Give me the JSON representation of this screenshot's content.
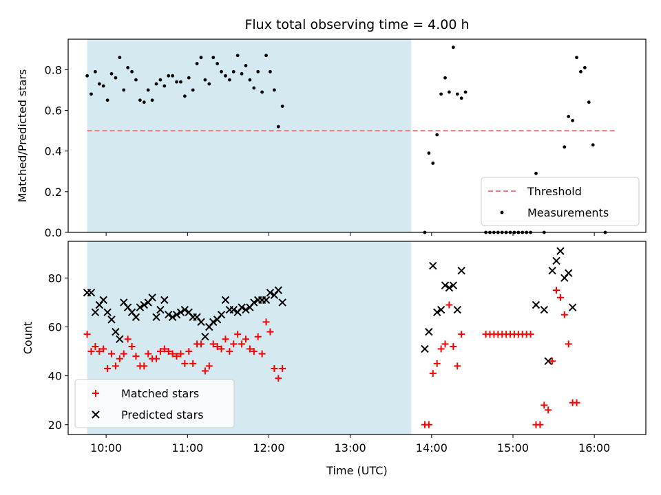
{
  "chart_data": [
    {
      "type": "scatter",
      "title": "Flux total observing time = 4.00 h",
      "xlabel": "",
      "ylabel": "Matched/Predicted stars",
      "ylim": [
        0,
        0.95
      ],
      "yticks": [
        0.0,
        0.2,
        0.4,
        0.6,
        0.8
      ],
      "ytick_labels": [
        "0.0",
        "0.2",
        "0.4",
        "0.6",
        "0.8"
      ],
      "xlim": [
        "09:32",
        "16:38"
      ],
      "x_tick_values": [
        "10:00",
        "11:00",
        "12:00",
        "13:00",
        "14:00",
        "15:00",
        "16:00"
      ],
      "shaded_region": {
        "start": "09:46",
        "end": "13:45",
        "color": "#d4eaf0"
      },
      "grid": false,
      "legend_position": "lower right",
      "threshold": {
        "name": "Threshold",
        "value": 0.5,
        "x_start": "09:46",
        "x_end": "16:15",
        "color": "#f07b7b",
        "style": "dashed"
      },
      "series": [
        {
          "name": "Measurements",
          "color": "#000000",
          "marker": "dot",
          "points": [
            [
              "09:46",
              0.77
            ],
            [
              "09:49",
              0.68
            ],
            [
              "09:52",
              0.79
            ],
            [
              "09:55",
              0.73
            ],
            [
              "09:58",
              0.72
            ],
            [
              "10:01",
              0.65
            ],
            [
              "10:04",
              0.78
            ],
            [
              "10:07",
              0.76
            ],
            [
              "10:10",
              0.86
            ],
            [
              "10:13",
              0.7
            ],
            [
              "10:16",
              0.81
            ],
            [
              "10:19",
              0.79
            ],
            [
              "10:22",
              0.75
            ],
            [
              "10:25",
              0.65
            ],
            [
              "10:28",
              0.64
            ],
            [
              "10:31",
              0.7
            ],
            [
              "10:34",
              0.65
            ],
            [
              "10:37",
              0.73
            ],
            [
              "10:40",
              0.75
            ],
            [
              "10:43",
              0.72
            ],
            [
              "10:46",
              0.77
            ],
            [
              "10:49",
              0.77
            ],
            [
              "10:52",
              0.74
            ],
            [
              "10:55",
              0.74
            ],
            [
              "10:58",
              0.67
            ],
            [
              "11:01",
              0.76
            ],
            [
              "11:04",
              0.7
            ],
            [
              "11:07",
              0.83
            ],
            [
              "11:10",
              0.86
            ],
            [
              "11:13",
              0.75
            ],
            [
              "11:16",
              0.73
            ],
            [
              "11:19",
              0.86
            ],
            [
              "11:22",
              0.83
            ],
            [
              "11:25",
              0.79
            ],
            [
              "11:28",
              0.77
            ],
            [
              "11:31",
              0.75
            ],
            [
              "11:34",
              0.79
            ],
            [
              "11:37",
              0.87
            ],
            [
              "11:40",
              0.78
            ],
            [
              "11:43",
              0.82
            ],
            [
              "11:46",
              0.75
            ],
            [
              "11:49",
              0.71
            ],
            [
              "11:52",
              0.79
            ],
            [
              "11:55",
              0.69
            ],
            [
              "11:58",
              0.87
            ],
            [
              "12:01",
              0.79
            ],
            [
              "12:04",
              0.7
            ],
            [
              "12:07",
              0.52
            ],
            [
              "12:10",
              0.62
            ],
            [
              "13:55",
              0.0
            ],
            [
              "13:58",
              0.39
            ],
            [
              "14:01",
              0.34
            ],
            [
              "14:04",
              0.48
            ],
            [
              "14:07",
              0.68
            ],
            [
              "14:10",
              0.76
            ],
            [
              "14:13",
              0.69
            ],
            [
              "14:16",
              0.91
            ],
            [
              "14:19",
              0.68
            ],
            [
              "14:22",
              0.66
            ],
            [
              "14:25",
              0.69
            ],
            [
              "14:40",
              0.0
            ],
            [
              "14:43",
              0.0
            ],
            [
              "14:46",
              0.0
            ],
            [
              "14:49",
              0.0
            ],
            [
              "14:52",
              0.0
            ],
            [
              "14:55",
              0.0
            ],
            [
              "14:58",
              0.0
            ],
            [
              "15:01",
              0.0
            ],
            [
              "15:04",
              0.0
            ],
            [
              "15:07",
              0.0
            ],
            [
              "15:10",
              0.0
            ],
            [
              "15:13",
              0.0
            ],
            [
              "15:17",
              0.29
            ],
            [
              "15:23",
              0.0
            ],
            [
              "15:38",
              0.42
            ],
            [
              "15:41",
              0.57
            ],
            [
              "15:44",
              0.55
            ],
            [
              "15:47",
              0.86
            ],
            [
              "15:50",
              0.79
            ],
            [
              "15:53",
              0.81
            ],
            [
              "15:56",
              0.64
            ],
            [
              "15:59",
              0.43
            ],
            [
              "16:08",
              0.0
            ]
          ]
        }
      ]
    },
    {
      "type": "scatter",
      "title": "",
      "xlabel": "Time (UTC)",
      "ylabel": "Count",
      "ylim": [
        16,
        95
      ],
      "yticks": [
        20,
        40,
        60,
        80
      ],
      "ytick_labels": [
        "20",
        "40",
        "60",
        "80"
      ],
      "xlim": [
        "09:32",
        "16:38"
      ],
      "x_tick_values": [
        "10:00",
        "11:00",
        "12:00",
        "13:00",
        "14:00",
        "15:00",
        "16:00"
      ],
      "x_tick_labels": [
        "10:00",
        "11:00",
        "12:00",
        "13:00",
        "14:00",
        "15:00",
        "16:00"
      ],
      "shaded_region": {
        "start": "09:46",
        "end": "13:45",
        "color": "#d4eaf0"
      },
      "grid": false,
      "legend_position": "lower left",
      "series": [
        {
          "name": "Matched stars",
          "color": "#ff0000",
          "marker": "plus",
          "points": [
            [
              "09:46",
              57
            ],
            [
              "09:49",
              50
            ],
            [
              "09:52",
              52
            ],
            [
              "09:55",
              50
            ],
            [
              "09:58",
              51
            ],
            [
              "10:01",
              43
            ],
            [
              "10:04",
              49
            ],
            [
              "10:07",
              44
            ],
            [
              "10:10",
              47
            ],
            [
              "10:13",
              49
            ],
            [
              "10:16",
              55
            ],
            [
              "10:19",
              52
            ],
            [
              "10:22",
              48
            ],
            [
              "10:25",
              44
            ],
            [
              "10:28",
              44
            ],
            [
              "10:31",
              49
            ],
            [
              "10:34",
              47
            ],
            [
              "10:37",
              47
            ],
            [
              "10:40",
              50
            ],
            [
              "10:43",
              51
            ],
            [
              "10:46",
              50
            ],
            [
              "10:49",
              49
            ],
            [
              "10:52",
              48
            ],
            [
              "10:55",
              49
            ],
            [
              "10:58",
              45
            ],
            [
              "11:01",
              50
            ],
            [
              "11:04",
              45
            ],
            [
              "11:07",
              53
            ],
            [
              "11:10",
              53
            ],
            [
              "11:13",
              42
            ],
            [
              "11:16",
              44
            ],
            [
              "11:19",
              53
            ],
            [
              "11:22",
              52
            ],
            [
              "11:25",
              51
            ],
            [
              "11:28",
              55
            ],
            [
              "11:31",
              50
            ],
            [
              "11:34",
              53
            ],
            [
              "11:37",
              57
            ],
            [
              "11:40",
              53
            ],
            [
              "11:43",
              55
            ],
            [
              "11:46",
              51
            ],
            [
              "11:49",
              50
            ],
            [
              "11:52",
              56
            ],
            [
              "11:55",
              49
            ],
            [
              "11:58",
              62
            ],
            [
              "12:01",
              58
            ],
            [
              "12:04",
              43
            ],
            [
              "12:07",
              39
            ],
            [
              "12:10",
              43
            ],
            [
              "13:55",
              20
            ],
            [
              "13:58",
              20
            ],
            [
              "14:01",
              41
            ],
            [
              "14:04",
              45
            ],
            [
              "14:07",
              51
            ],
            [
              "14:10",
              53
            ],
            [
              "14:13",
              69
            ],
            [
              "14:16",
              52
            ],
            [
              "14:19",
              44
            ],
            [
              "14:22",
              57
            ],
            [
              "14:40",
              57
            ],
            [
              "14:43",
              57
            ],
            [
              "14:46",
              57
            ],
            [
              "14:49",
              57
            ],
            [
              "14:52",
              57
            ],
            [
              "14:55",
              57
            ],
            [
              "14:58",
              57
            ],
            [
              "15:01",
              57
            ],
            [
              "15:04",
              57
            ],
            [
              "15:07",
              57
            ],
            [
              "15:10",
              57
            ],
            [
              "15:13",
              57
            ],
            [
              "15:17",
              20
            ],
            [
              "15:20",
              20
            ],
            [
              "15:23",
              28
            ],
            [
              "15:26",
              26
            ],
            [
              "15:29",
              46
            ],
            [
              "15:32",
              75
            ],
            [
              "15:35",
              72
            ],
            [
              "15:38",
              65
            ],
            [
              "15:41",
              53
            ],
            [
              "15:44",
              29
            ],
            [
              "15:47",
              29
            ]
          ]
        },
        {
          "name": "Predicted stars",
          "color": "#000000",
          "marker": "x",
          "points": [
            [
              "09:46",
              74
            ],
            [
              "09:49",
              74
            ],
            [
              "09:52",
              66
            ],
            [
              "09:55",
              69
            ],
            [
              "09:58",
              71
            ],
            [
              "10:01",
              66
            ],
            [
              "10:04",
              63
            ],
            [
              "10:07",
              58
            ],
            [
              "10:10",
              55
            ],
            [
              "10:13",
              70
            ],
            [
              "10:16",
              68
            ],
            [
              "10:19",
              66
            ],
            [
              "10:22",
              64
            ],
            [
              "10:25",
              68
            ],
            [
              "10:28",
              69
            ],
            [
              "10:31",
              70
            ],
            [
              "10:34",
              72
            ],
            [
              "10:37",
              64
            ],
            [
              "10:40",
              67
            ],
            [
              "10:43",
              71
            ],
            [
              "10:46",
              65
            ],
            [
              "10:49",
              64
            ],
            [
              "10:52",
              65
            ],
            [
              "10:55",
              66
            ],
            [
              "10:58",
              67
            ],
            [
              "11:01",
              66
            ],
            [
              "11:04",
              64
            ],
            [
              "11:07",
              64
            ],
            [
              "11:10",
              62
            ],
            [
              "11:13",
              56
            ],
            [
              "11:16",
              60
            ],
            [
              "11:19",
              62
            ],
            [
              "11:22",
              63
            ],
            [
              "11:25",
              65
            ],
            [
              "11:28",
              71
            ],
            [
              "11:31",
              67
            ],
            [
              "11:34",
              67
            ],
            [
              "11:37",
              66
            ],
            [
              "11:40",
              68
            ],
            [
              "11:43",
              67
            ],
            [
              "11:46",
              68
            ],
            [
              "11:49",
              70
            ],
            [
              "11:52",
              71
            ],
            [
              "11:55",
              71
            ],
            [
              "11:58",
              71
            ],
            [
              "12:01",
              74
            ],
            [
              "12:04",
              73
            ],
            [
              "12:07",
              75
            ],
            [
              "12:10",
              70
            ],
            [
              "13:55",
              51
            ],
            [
              "13:58",
              58
            ],
            [
              "14:01",
              85
            ],
            [
              "14:04",
              66
            ],
            [
              "14:07",
              67
            ],
            [
              "14:10",
              77
            ],
            [
              "14:13",
              76
            ],
            [
              "14:16",
              77
            ],
            [
              "14:19",
              67
            ],
            [
              "14:22",
              83
            ],
            [
              "15:17",
              69
            ],
            [
              "15:23",
              67
            ],
            [
              "15:26",
              46
            ],
            [
              "15:29",
              83
            ],
            [
              "15:32",
              87
            ],
            [
              "15:35",
              91
            ],
            [
              "15:38",
              80
            ],
            [
              "15:41",
              82
            ],
            [
              "15:44",
              68
            ]
          ]
        }
      ]
    }
  ]
}
